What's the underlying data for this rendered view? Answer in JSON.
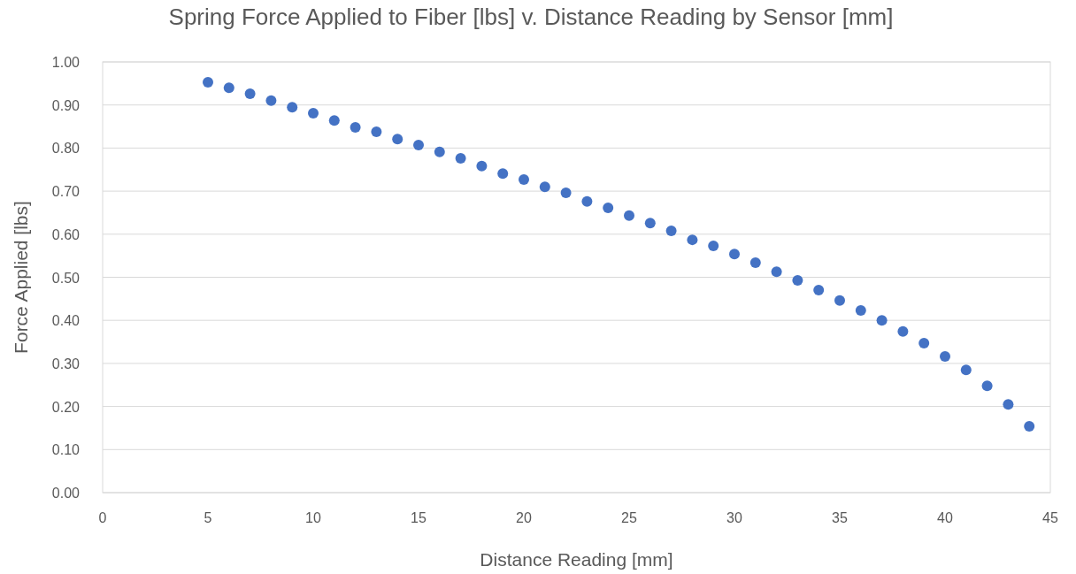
{
  "chart_data": {
    "type": "scatter",
    "title": "Spring Force Applied to Fiber [lbs] v. Distance Reading by Sensor [mm]",
    "xlabel": "Distance Reading [mm]",
    "ylabel": "Force Applied [lbs]",
    "x": [
      5,
      6,
      7,
      8,
      9,
      10,
      11,
      12,
      13,
      14,
      15,
      16,
      17,
      18,
      19,
      20,
      21,
      22,
      23,
      24,
      25,
      26,
      27,
      28,
      29,
      30,
      31,
      32,
      33,
      34,
      35,
      36,
      37,
      38,
      39,
      40,
      41,
      42,
      43,
      44
    ],
    "series": [
      {
        "color": "#4472c4",
        "values": [
          0.953,
          0.94,
          0.926,
          0.91,
          0.895,
          0.881,
          0.864,
          0.848,
          0.838,
          0.821,
          0.807,
          0.791,
          0.776,
          0.758,
          0.741,
          0.727,
          0.71,
          0.696,
          0.676,
          0.661,
          0.643,
          0.626,
          0.608,
          0.587,
          0.573,
          0.554,
          0.534,
          0.513,
          0.493,
          0.47,
          0.446,
          0.423,
          0.4,
          0.374,
          0.347,
          0.316,
          0.285,
          0.248,
          0.205,
          0.154
        ]
      }
    ],
    "xlim": [
      0,
      45
    ],
    "xticks": [
      0,
      5,
      10,
      15,
      20,
      25,
      30,
      35,
      40,
      45
    ],
    "ylim": [
      0,
      1
    ],
    "yticks": [
      {
        "value": 0,
        "label": "0.00"
      },
      {
        "value": 0.1,
        "label": "0.10"
      },
      {
        "value": 0.2,
        "label": "0.20"
      },
      {
        "value": 0.3,
        "label": "0.30"
      },
      {
        "value": 0.4,
        "label": "0.40"
      },
      {
        "value": 0.5,
        "label": "0.50"
      },
      {
        "value": 0.6,
        "label": "0.60"
      },
      {
        "value": 0.7,
        "label": "0.70"
      },
      {
        "value": 0.8,
        "label": "0.80"
      },
      {
        "value": 0.9,
        "label": "0.90"
      },
      {
        "value": 1,
        "label": "1.00"
      }
    ],
    "grid": "y",
    "marker": "circle"
  }
}
